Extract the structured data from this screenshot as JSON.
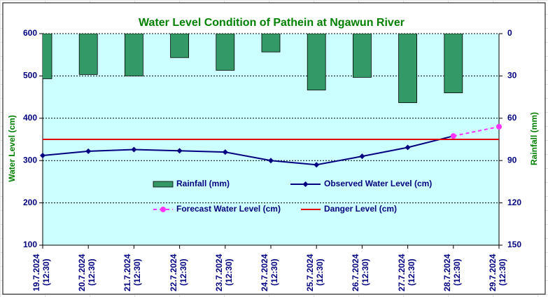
{
  "chart_data": {
    "type": "bar-line",
    "title": "Water Level Condition of Pathein at Ngawun River",
    "y_label": "Water Level (cm)",
    "y2_label": "Rainfall (mm)",
    "categories": [
      "19.7.2024 (12:30)",
      "20.7.2024 (12:30)",
      "21.7.2024 (12:30)",
      "22.7.2024 (12:30)",
      "23.7.2024 (12:30)",
      "24.7.2024 (12:30)",
      "25.7.2024 (12:30)",
      "26.7.2024 (12:30)",
      "27.7.2024 (12:30)",
      "28.7.2024 (12:30)",
      "29.7.2024 (12:30)"
    ],
    "ylim": [
      100,
      600
    ],
    "yticks": [
      100,
      200,
      300,
      400,
      500,
      600
    ],
    "y2lim": [
      150,
      0
    ],
    "y2ticks": [
      0,
      30,
      60,
      90,
      120,
      150
    ],
    "y2_inverted": true,
    "grid": true,
    "series": [
      {
        "name": "Rainfall (mm)",
        "type": "bar",
        "axis": "y2",
        "color": "#339966",
        "values": [
          32,
          29,
          30,
          17,
          26,
          13,
          40,
          31,
          49,
          42,
          null
        ]
      },
      {
        "name": "Observed Water Level (cm)",
        "type": "line",
        "color": "#000080",
        "marker": "diamond",
        "values": [
          312,
          322,
          326,
          323,
          320,
          300,
          290,
          310,
          331,
          358,
          null
        ]
      },
      {
        "name": "Forecast Water Level (cm)",
        "type": "line",
        "color": "#ff33ff",
        "marker": "circle",
        "dashed": true,
        "values": [
          null,
          null,
          null,
          null,
          null,
          null,
          null,
          null,
          null,
          358,
          380
        ]
      },
      {
        "name": "Danger Level (cm)",
        "type": "line",
        "color": "#e00000",
        "values": [
          350,
          350,
          350,
          350,
          350,
          350,
          350,
          350,
          350,
          350,
          350
        ]
      }
    ]
  }
}
